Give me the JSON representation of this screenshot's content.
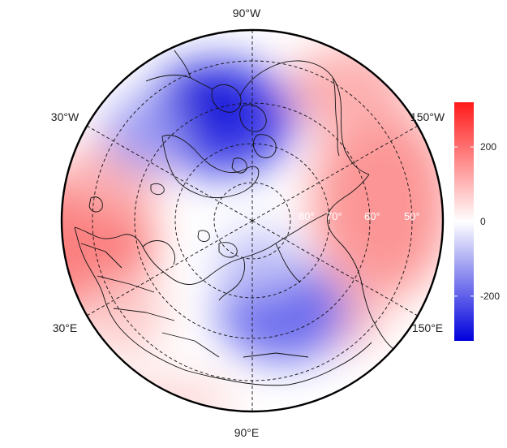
{
  "map": {
    "projection": "north-polar-stereographic",
    "field_colors": {
      "low": "#0000dd",
      "mid": "#ffffff",
      "high": "#ff1a1a"
    },
    "field_range": [
      -320,
      320
    ]
  },
  "longitude_labels": {
    "top": "90°W",
    "upper_left": "30°W",
    "upper_right": "150°W",
    "lower_left": "30°E",
    "lower_right": "150°E",
    "bottom": "90°E"
  },
  "latitude_labels": [
    "80°",
    "70°",
    "60°",
    "50°"
  ],
  "colorbar": {
    "ticks": [
      {
        "value": 200,
        "label": "200"
      },
      {
        "value": 0,
        "label": "0"
      },
      {
        "value": -200,
        "label": "-200"
      }
    ],
    "range": [
      -320,
      320
    ]
  }
}
